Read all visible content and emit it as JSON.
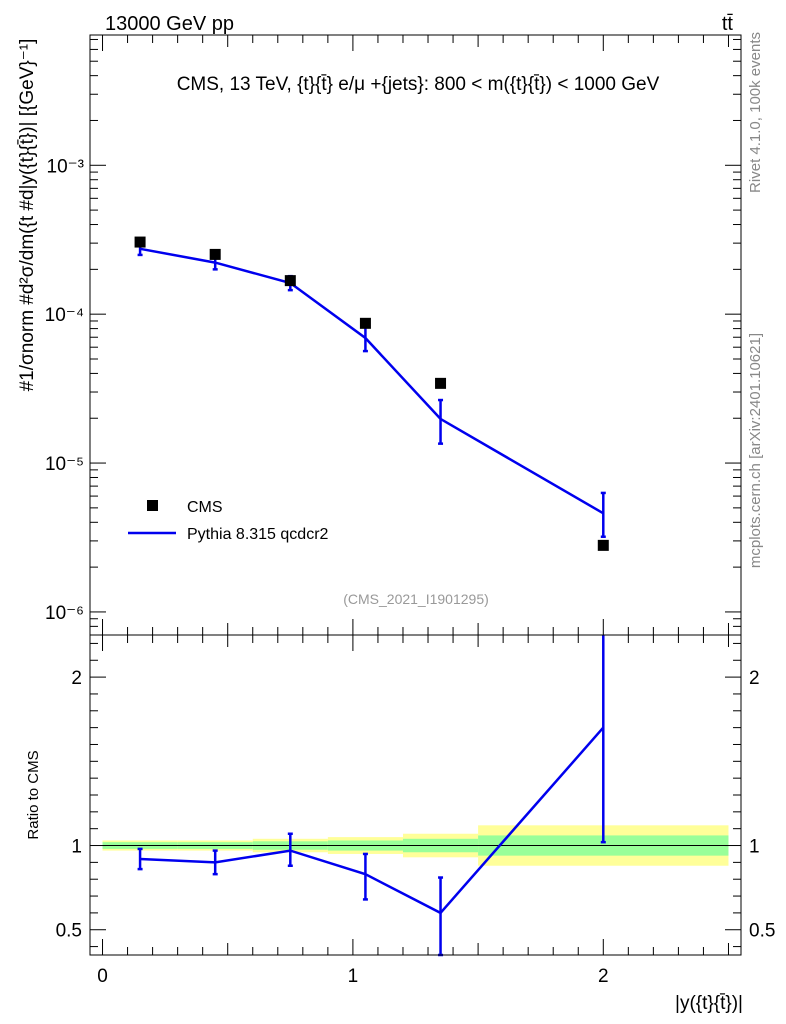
{
  "header": {
    "left": "13000 GeV pp",
    "right": "tt̄"
  },
  "side_labels": {
    "rivet": "Rivet 4.1.0,  100k events",
    "mcplots": "mcplots.cern.ch [arXiv:2401.10621]"
  },
  "chart_data": [
    {
      "type": "scatter",
      "panel": "main",
      "title": "CMS, 13 TeV, {t}{t̄} e/μ +{jets}: 800 < m({t}{t̄}) < 1000 GeV",
      "watermark": "(CMS_2021_I1901295)",
      "ylabel": "#1/σnorm #d²σ/dm({t #d|y({t}{t̄})| [{GeV}⁻¹]",
      "yscale": "log",
      "ylim": [
        7e-07,
        0.0075
      ],
      "xlim": [
        -0.05,
        2.55
      ],
      "y_ticks": [
        {
          "label": "10⁻³",
          "value": 0.001
        },
        {
          "label": "10⁻⁴",
          "value": 0.0001
        },
        {
          "label": "10⁻⁵",
          "value": 1e-05
        },
        {
          "label": "10⁻⁶",
          "value": 1e-06
        }
      ],
      "legend": [
        {
          "name": "CMS",
          "marker": "square",
          "color": "#000000"
        },
        {
          "name": "Pythia 8.315 qcdcr2",
          "marker": "line",
          "color": "#0000ee"
        }
      ],
      "series": [
        {
          "name": "CMS",
          "x": [
            0.15,
            0.45,
            0.75,
            1.05,
            1.35,
            2.0
          ],
          "values": [
            0.000305,
            0.000252,
            0.000168,
            8.68e-05,
            3.43e-05,
            2.8e-06
          ]
        },
        {
          "name": "Pythia 8.315 qcdcr2",
          "x": [
            0.15,
            0.45,
            0.75,
            1.05,
            1.35,
            2.0
          ],
          "values": [
            0.000275,
            0.000222,
            0.000162,
            6.92e-05,
            1.98e-05,
            4.6e-06
          ],
          "err_lo": [
            0.00025,
            0.0002,
            0.000145,
            5.65e-05,
            1.35e-05,
            3.2e-06
          ],
          "err_hi": [
            0.0003,
            0.000245,
            0.00018,
            8.2e-05,
            2.65e-05,
            6.3e-06
          ]
        }
      ]
    },
    {
      "type": "line",
      "panel": "ratio",
      "ylabel": "Ratio to CMS",
      "xlabel": "|y({t}{t̄})|",
      "ylim": [
        0.35,
        2.25
      ],
      "xlim": [
        -0.05,
        2.55
      ],
      "y_ticks": [
        {
          "label": "0.5",
          "value": 0.5
        },
        {
          "label": "1",
          "value": 1
        },
        {
          "label": "2",
          "value": 2
        }
      ],
      "x_ticks": [
        {
          "label": "0",
          "value": 0
        },
        {
          "label": "1",
          "value": 1
        },
        {
          "label": "2",
          "value": 2
        }
      ],
      "uncertainty_bands": [
        {
          "x0": 0.0,
          "x1": 0.3,
          "stat_lo": 0.98,
          "stat_hi": 1.02,
          "tot_lo": 0.97,
          "tot_hi": 1.03
        },
        {
          "x0": 0.3,
          "x1": 0.6,
          "stat_lo": 0.98,
          "stat_hi": 1.02,
          "tot_lo": 0.97,
          "tot_hi": 1.03
        },
        {
          "x0": 0.6,
          "x1": 0.9,
          "stat_lo": 0.975,
          "stat_hi": 1.025,
          "tot_lo": 0.96,
          "tot_hi": 1.04
        },
        {
          "x0": 0.9,
          "x1": 1.2,
          "stat_lo": 0.97,
          "stat_hi": 1.03,
          "tot_lo": 0.95,
          "tot_hi": 1.05
        },
        {
          "x0": 1.2,
          "x1": 1.5,
          "stat_lo": 0.96,
          "stat_hi": 1.04,
          "tot_lo": 0.93,
          "tot_hi": 1.07
        },
        {
          "x0": 1.5,
          "x1": 2.5,
          "stat_lo": 0.94,
          "stat_hi": 1.06,
          "tot_lo": 0.88,
          "tot_hi": 1.12
        }
      ],
      "series": [
        {
          "name": "Pythia 8.315 qcdcr2 / CMS",
          "x": [
            0.15,
            0.45,
            0.75,
            1.05,
            1.35,
            2.0
          ],
          "values": [
            0.92,
            0.9,
            0.97,
            0.83,
            0.6,
            1.7
          ],
          "err_lo": [
            0.86,
            0.83,
            0.88,
            0.68,
            0.35,
            1.02
          ],
          "err_hi": [
            0.98,
            0.97,
            1.07,
            0.95,
            0.81,
            2.27
          ]
        }
      ]
    }
  ],
  "colors": {
    "data": "#000000",
    "mc": "#0000ee",
    "band_stat": "#99ff99",
    "band_total": "#ffff99"
  }
}
